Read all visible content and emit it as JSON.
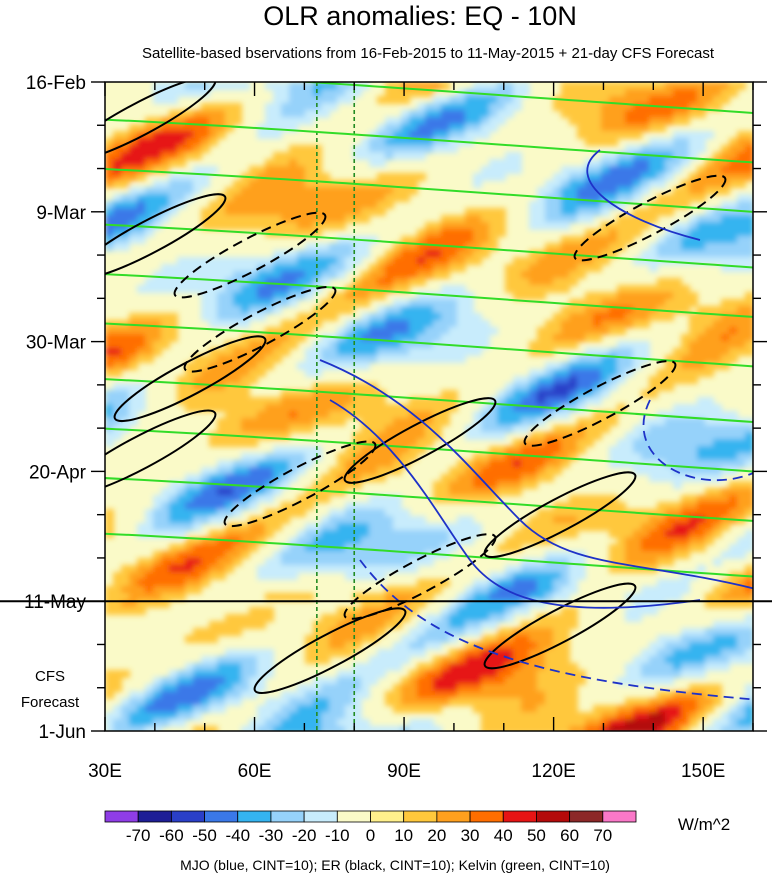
{
  "chart_data": {
    "type": "heatmap",
    "title": "OLR anomalies: EQ - 10N",
    "subtitle": "Satellite-based bservations from 16-Feb-2015 to 11-May-2015 + 21-day CFS Forecast",
    "x_axis": {
      "range": [
        30,
        160
      ],
      "ticks": [
        {
          "value": 30,
          "label": "30E"
        },
        {
          "value": 60,
          "label": "60E"
        },
        {
          "value": 90,
          "label": "90E"
        },
        {
          "value": 120,
          "label": "120E"
        },
        {
          "value": 150,
          "label": "150E"
        }
      ],
      "minor_step": 10
    },
    "y_axis": {
      "direction": "time increasing downward",
      "range": [
        "2015-02-16",
        "2015-06-01"
      ],
      "ticks": [
        {
          "date": "2015-02-16",
          "label": "16-Feb"
        },
        {
          "date": "2015-03-09",
          "label": "9-Mar"
        },
        {
          "date": "2015-03-30",
          "label": "30-Mar"
        },
        {
          "date": "2015-04-20",
          "label": "20-Apr"
        },
        {
          "date": "2015-05-11",
          "label": "11-May"
        },
        {
          "date": "2015-06-01",
          "label": "1-Jun"
        }
      ],
      "minor_step_days": 7
    },
    "forecast_divider": {
      "date": "2015-05-11"
    },
    "forecast_label": [
      "CFS",
      "Forecast"
    ],
    "reference_longitudes": [
      72.5,
      80
    ],
    "colorbar": {
      "unit": "W/m^2",
      "levels": [
        -70,
        -60,
        -50,
        -40,
        -30,
        -20,
        -10,
        0,
        10,
        20,
        30,
        40,
        50,
        60,
        70
      ],
      "colors": [
        "#8f3de6",
        "#1e1e96",
        "#2a3fc8",
        "#3a78e8",
        "#34b4f0",
        "#96d2fa",
        "#c8ecfc",
        "#fafac8",
        "#fff08c",
        "#ffc83c",
        "#ffa01e",
        "#ff6e00",
        "#e61414",
        "#b40a0a",
        "#8c2828",
        "#fa78c8"
      ]
    },
    "contours": [
      {
        "wave": "MJO",
        "color": "#1e32c8",
        "cint": 10
      },
      {
        "wave": "ER",
        "color": "#000000",
        "cint": 10
      },
      {
        "wave": "Kelvin",
        "color": "#32dc28",
        "cint": 10
      }
    ],
    "footnote": "MJO (blue, CINT=10); ER (black, CINT=10); Kelvin (green, CINT=10)"
  }
}
